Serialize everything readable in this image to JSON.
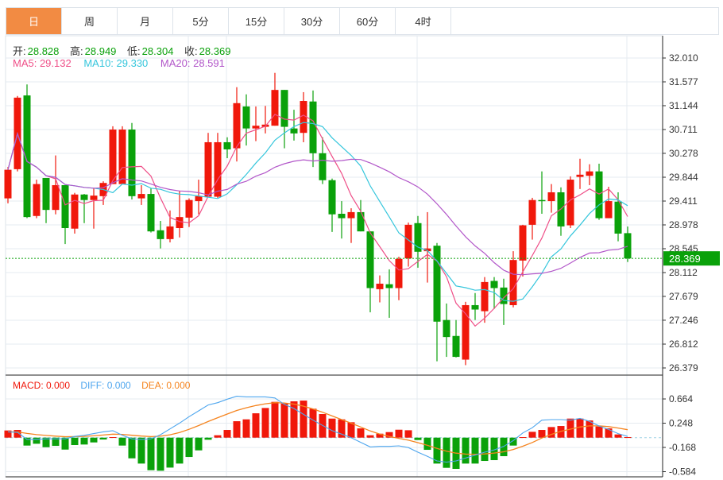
{
  "tabs": [
    {
      "label": "日",
      "active": true
    },
    {
      "label": "周"
    },
    {
      "label": "月"
    },
    {
      "label": "5分"
    },
    {
      "label": "15分"
    },
    {
      "label": "30分"
    },
    {
      "label": "60分"
    },
    {
      "label": "4时"
    }
  ],
  "ohlc_info": {
    "open_label": "开:",
    "open": "28.828",
    "high_label": "高:",
    "high": "28.949",
    "low_label": "低:",
    "low": "28.304",
    "close_label": "收:",
    "close": "28.369"
  },
  "ma_info": {
    "ma5": "MA5: 29.132",
    "ma10": "MA10: 29.330",
    "ma20": "MA20: 28.591"
  },
  "macd_info": {
    "macd": "MACD: 0.000",
    "diff": "DIFF: 0.000",
    "dea": "DEA: 0.000"
  },
  "current_price": "28.369",
  "colors": {
    "up": "#f0180b",
    "down": "#0aa10a",
    "ma5": "#ef4f88",
    "ma10": "#35c6dc",
    "ma20": "#b257c9",
    "diff": "#4ea6ee",
    "dea": "#f5841f",
    "active_tab": "#f28b43"
  },
  "chart_data": [
    {
      "type": "candlestick",
      "title": "",
      "y_ticks": [
        "32.010",
        "31.577",
        "31.144",
        "30.711",
        "30.278",
        "29.844",
        "29.411",
        "28.978",
        "28.545",
        "28.112",
        "27.679",
        "27.246",
        "26.812",
        "26.379"
      ],
      "ylim": [
        26.379,
        32.01
      ],
      "ma_periods": [
        5,
        10,
        20
      ],
      "candles": [
        [
          29.46,
          30.03,
          29.37,
          29.98
        ],
        [
          29.99,
          31.32,
          29.95,
          31.29
        ],
        [
          31.33,
          31.53,
          29.1,
          29.12
        ],
        [
          29.14,
          29.8,
          29.1,
          29.72
        ],
        [
          29.83,
          29.83,
          29.01,
          29.25
        ],
        [
          29.25,
          30.24,
          29.17,
          29.7
        ],
        [
          29.7,
          29.7,
          28.63,
          28.92
        ],
        [
          28.91,
          29.56,
          28.82,
          29.53
        ],
        [
          29.53,
          29.54,
          29.01,
          29.43
        ],
        [
          29.43,
          29.64,
          28.91,
          29.51
        ],
        [
          29.5,
          29.77,
          29.34,
          29.74
        ],
        [
          29.72,
          30.77,
          29.72,
          30.71
        ],
        [
          29.72,
          30.77,
          29.72,
          30.71
        ],
        [
          30.71,
          30.83,
          29.44,
          29.5
        ],
        [
          29.46,
          29.7,
          29.34,
          29.54
        ],
        [
          29.54,
          29.64,
          28.84,
          28.86
        ],
        [
          28.88,
          29.05,
          28.55,
          28.72
        ],
        [
          28.72,
          29.24,
          28.66,
          28.95
        ],
        [
          28.92,
          29.6,
          28.75,
          29.12
        ],
        [
          29.11,
          29.46,
          28.94,
          29.43
        ],
        [
          29.41,
          29.8,
          29.17,
          29.5
        ],
        [
          29.49,
          30.65,
          29.49,
          30.48
        ],
        [
          29.49,
          30.65,
          29.47,
          30.48
        ],
        [
          30.48,
          30.57,
          30.19,
          30.35
        ],
        [
          30.37,
          31.48,
          30.13,
          31.19
        ],
        [
          31.13,
          31.35,
          30.42,
          30.73
        ],
        [
          30.73,
          31.13,
          30.5,
          30.78
        ],
        [
          30.76,
          31.14,
          30.64,
          30.8
        ],
        [
          30.78,
          31.74,
          30.78,
          31.43
        ],
        [
          31.43,
          31.43,
          30.37,
          30.76
        ],
        [
          30.73,
          31.07,
          30.51,
          30.64
        ],
        [
          30.65,
          31.39,
          30.48,
          31.23
        ],
        [
          31.22,
          31.42,
          30.03,
          30.28
        ],
        [
          30.28,
          30.57,
          29.72,
          29.79
        ],
        [
          29.79,
          29.82,
          28.85,
          29.17
        ],
        [
          29.18,
          29.41,
          28.73,
          29.1
        ],
        [
          29.1,
          29.28,
          28.65,
          29.21
        ],
        [
          29.21,
          29.43,
          28.86,
          28.86
        ],
        [
          28.86,
          28.86,
          27.39,
          27.83
        ],
        [
          27.81,
          28.06,
          27.57,
          27.91
        ],
        [
          27.9,
          28.17,
          27.29,
          27.83
        ],
        [
          27.83,
          28.4,
          27.61,
          28.36
        ],
        [
          28.37,
          29.02,
          28.22,
          28.98
        ],
        [
          29.01,
          29.14,
          28.2,
          28.49
        ],
        [
          28.5,
          29.21,
          27.93,
          28.55
        ],
        [
          28.6,
          28.65,
          26.5,
          27.22
        ],
        [
          27.25,
          27.55,
          26.58,
          26.94
        ],
        [
          26.96,
          27.25,
          26.57,
          26.58
        ],
        [
          26.53,
          27.58,
          26.43,
          27.52
        ],
        [
          27.52,
          27.74,
          27.25,
          27.44
        ],
        [
          27.41,
          28.03,
          27.2,
          27.94
        ],
        [
          27.96,
          28.03,
          27.45,
          27.83
        ],
        [
          27.84,
          28.0,
          27.16,
          27.54
        ],
        [
          27.52,
          28.5,
          27.48,
          28.34
        ],
        [
          28.33,
          28.98,
          28.04,
          28.97
        ],
        [
          28.98,
          29.47,
          28.71,
          29.43
        ],
        [
          29.43,
          29.95,
          29.18,
          29.41
        ],
        [
          29.41,
          29.72,
          29.2,
          29.57
        ],
        [
          29.57,
          29.66,
          28.78,
          28.95
        ],
        [
          28.97,
          29.86,
          28.92,
          29.8
        ],
        [
          29.85,
          30.18,
          29.63,
          29.89
        ],
        [
          29.87,
          30.08,
          29.7,
          29.95
        ],
        [
          29.95,
          30.09,
          29.07,
          29.1
        ],
        [
          29.1,
          29.67,
          29.1,
          29.41
        ],
        [
          29.4,
          29.57,
          28.68,
          28.82
        ],
        [
          28.828,
          28.949,
          28.304,
          28.369
        ]
      ]
    },
    {
      "type": "bar",
      "title": "MACD",
      "y_ticks": [
        "0.664",
        "0.248",
        "-0.168",
        "-0.584"
      ],
      "macd": [
        0.123,
        0.132,
        -0.136,
        -0.105,
        -0.164,
        -0.141,
        -0.205,
        -0.127,
        -0.118,
        -0.082,
        -0.032,
        0.009,
        -0.136,
        -0.355,
        -0.445,
        -0.559,
        -0.568,
        -0.514,
        -0.445,
        -0.332,
        -0.218,
        -0.036,
        0.041,
        0.132,
        0.282,
        0.314,
        0.418,
        0.509,
        0.614,
        0.586,
        0.623,
        0.636,
        0.496,
        0.405,
        0.327,
        0.314,
        0.264,
        0.159,
        0.041,
        0.068,
        0.095,
        0.136,
        0.127,
        -0.041,
        -0.209,
        -0.445,
        -0.518,
        -0.536,
        -0.445,
        -0.445,
        -0.4,
        -0.386,
        -0.318,
        -0.136,
        0.009,
        0.1,
        0.132,
        0.182,
        0.2,
        0.327,
        0.327,
        0.295,
        0.191,
        0.159,
        0.055,
        0.009
      ],
      "diff": [
        0.1,
        0.09,
        -0.03,
        -0.03,
        -0.02,
        -0.02,
        -0.02,
        0.02,
        0.04,
        0.07,
        0.1,
        0.12,
        0.04,
        -0.02,
        -0.03,
        -0.02,
        0.05,
        0.15,
        0.25,
        0.36,
        0.46,
        0.56,
        0.6,
        0.66,
        0.71,
        0.7,
        0.7,
        0.7,
        0.68,
        0.57,
        0.5,
        0.4,
        0.3,
        0.21,
        0.12,
        0.06,
        0.0,
        -0.08,
        -0.16,
        -0.15,
        -0.15,
        -0.14,
        -0.17,
        -0.25,
        -0.32,
        -0.4,
        -0.42,
        -0.4,
        -0.35,
        -0.3,
        -0.25,
        -0.21,
        -0.15,
        -0.05,
        0.08,
        0.17,
        0.3,
        0.31,
        0.31,
        0.3,
        0.33,
        0.28,
        0.2,
        0.14,
        0.07,
        0.02
      ]
    }
  ]
}
